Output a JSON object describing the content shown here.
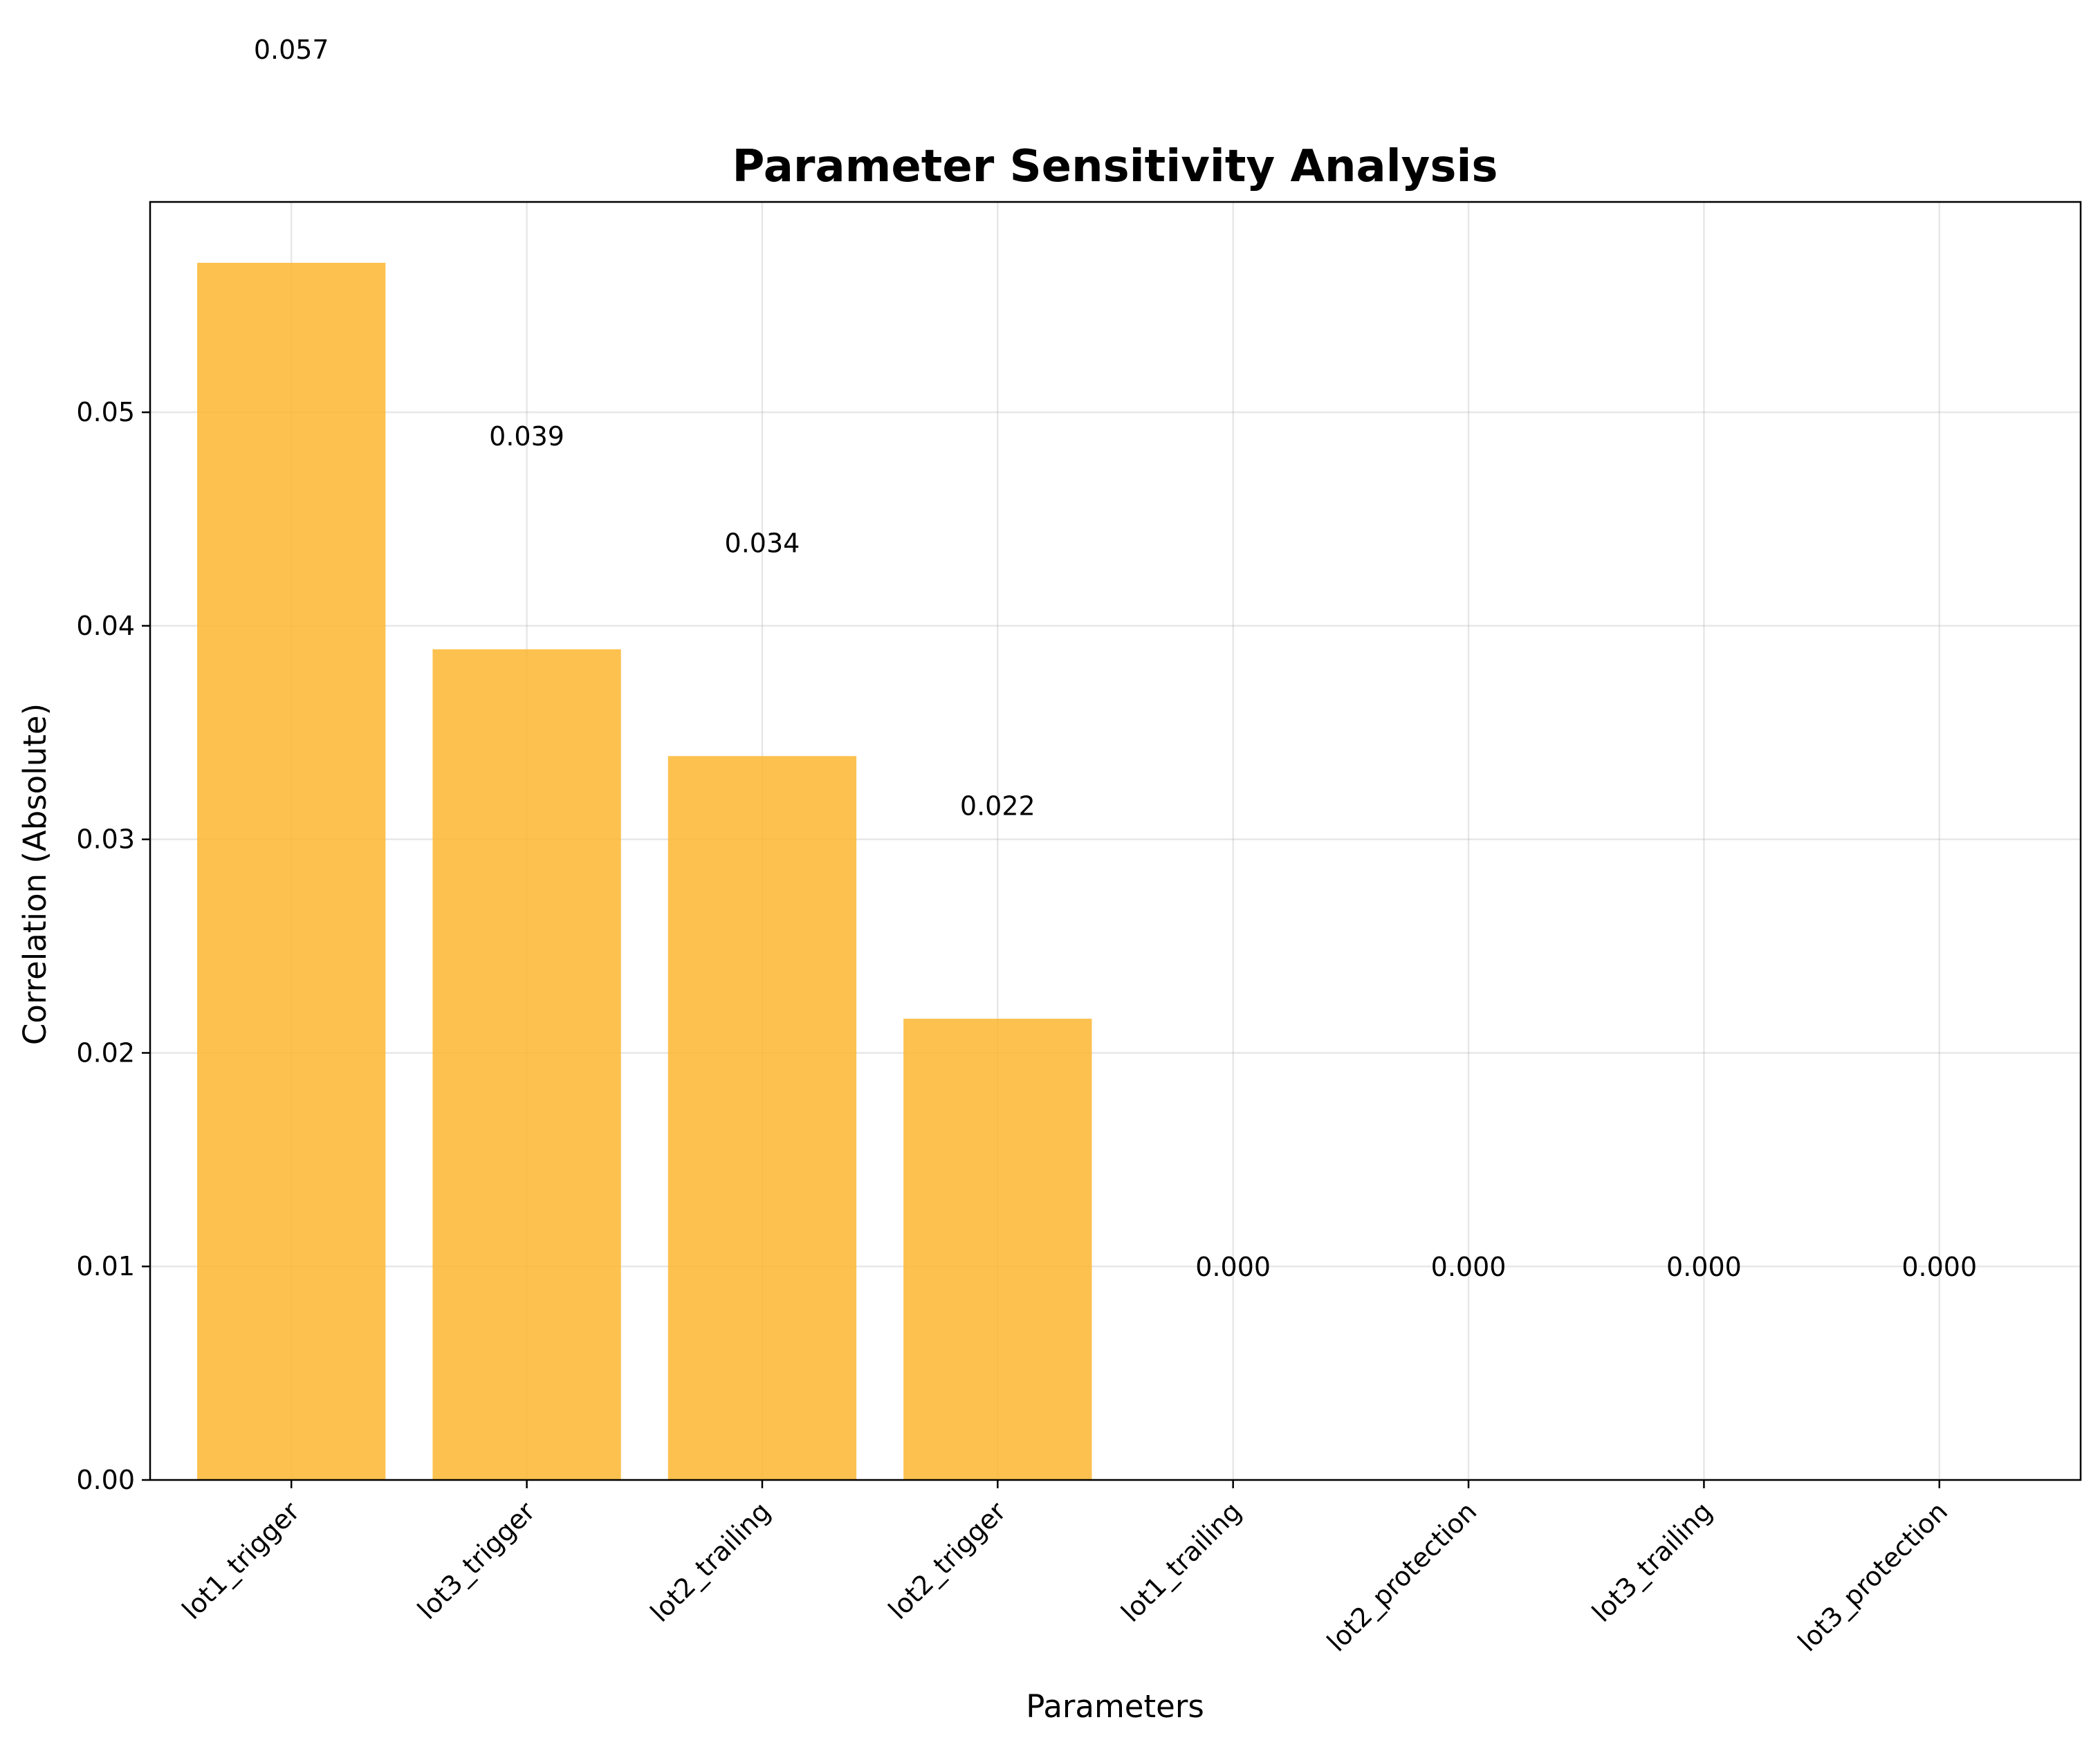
{
  "chart_data": {
    "type": "bar",
    "title": "Parameter Sensitivity Analysis",
    "xlabel": "Parameters",
    "ylabel": "Correlation (Absolute)",
    "categories": [
      "lot1_trigger",
      "lot3_trigger",
      "lot2_trailing",
      "lot2_trigger",
      "lot1_trailing",
      "lot2_protection",
      "lot3_trailing",
      "lot3_protection"
    ],
    "values": [
      0.057,
      0.0389,
      0.0339,
      0.0216,
      0.0,
      0.0,
      0.0,
      0.0
    ],
    "value_labels": [
      "0.057",
      "0.039",
      "0.034",
      "0.022",
      "0.000",
      "0.000",
      "0.000",
      "0.000"
    ],
    "ylim": [
      0,
      0.05985
    ],
    "yticks": [
      0.0,
      0.01,
      0.02,
      0.03,
      0.04,
      0.05
    ],
    "ytick_labels": [
      "0.00",
      "0.01",
      "0.02",
      "0.03",
      "0.04",
      "0.05"
    ],
    "grid": true,
    "bar_color": "#fbb630",
    "bar_opacity": 0.85
  }
}
